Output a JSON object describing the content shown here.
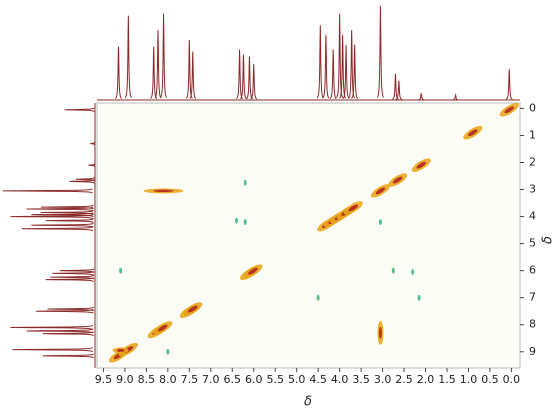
{
  "chart_data": {
    "type": "nmr-2d",
    "xlabel": "δ",
    "ylabel": "δ",
    "xlim": [
      9.65,
      -0.2
    ],
    "ylim": [
      -0.2,
      9.6
    ],
    "xticks": [
      9.5,
      {
        "value": 9.0,
        "label": "9.0"
      },
      8.5,
      {
        "value": 8.0,
        "label": "8.0"
      },
      7.5,
      {
        "value": 7.0,
        "label": "7.0"
      },
      6.5,
      {
        "value": 6.0,
        "label": "6.0"
      },
      5.5,
      {
        "value": 5.0,
        "label": "5.0"
      },
      4.5,
      {
        "value": 4.0,
        "label": "4.0"
      },
      3.5,
      {
        "value": 3.0,
        "label": "3.0"
      },
      2.5,
      {
        "value": 2.0,
        "label": "2.0"
      },
      1.5,
      {
        "value": 1.0,
        "label": "1.0"
      },
      0.5,
      {
        "value": 0.0,
        "label": "0.0"
      }
    ],
    "yticks": [
      0,
      1,
      2,
      3,
      4,
      5,
      6,
      7,
      8,
      9
    ],
    "strong_color": "#e9a81c",
    "core_color": "#b0201e",
    "weak_color": "#55c08a",
    "projection_color": "#8b2a2a",
    "strong_peaks": {
      "x": [
        9.15,
        8.92,
        8.25,
        8.12,
        7.5,
        7.42,
        6.1,
        6.02,
        4.3,
        4.15,
        4.0,
        3.85,
        3.68,
        3.05,
        2.65,
        2.1,
        0.9,
        0.05,
        8.1,
        3.05,
        9.1
      ],
      "y": [
        9.15,
        8.92,
        8.25,
        8.12,
        7.5,
        7.42,
        6.1,
        6.02,
        4.3,
        4.15,
        4.0,
        3.85,
        3.68,
        3.05,
        2.65,
        2.1,
        0.9,
        0.05,
        3.05,
        8.3,
        8.95
      ]
    },
    "weak_peaks": {
      "x": [
        9.1,
        6.2,
        6.2,
        6.4,
        2.75,
        2.3,
        2.15,
        3.05,
        4.5,
        8.0
      ],
      "y": [
        6.0,
        2.75,
        4.2,
        4.15,
        6.0,
        6.05,
        7.0,
        4.2,
        7.0,
        9.0
      ]
    },
    "projection": {
      "shifts": [
        9.15,
        8.92,
        8.33,
        8.23,
        8.1,
        7.5,
        7.42,
        6.33,
        6.24,
        6.1,
        6.0,
        4.45,
        4.32,
        4.15,
        4.0,
        3.93,
        3.85,
        3.72,
        3.65,
        3.05,
        2.7,
        2.62,
        2.1,
        1.3,
        0.05
      ],
      "heights": [
        55,
        87,
        55,
        72,
        89,
        62,
        50,
        52,
        47,
        45,
        37,
        77,
        67,
        52,
        89,
        67,
        57,
        72,
        57,
        97,
        27,
        20,
        7,
        5,
        32
      ]
    }
  }
}
